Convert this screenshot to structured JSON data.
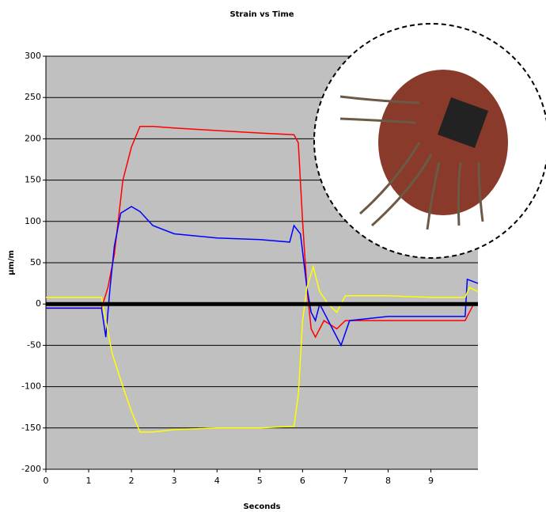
{
  "chart_data": {
    "type": "line",
    "title": "Strain vs Time",
    "x_label": "Seconds",
    "y_label": "µm/m",
    "xlim": [
      0,
      10.1
    ],
    "xticks": [
      0,
      1,
      2,
      3,
      4,
      5,
      6,
      7,
      8,
      9
    ],
    "ylim": [
      -200,
      300
    ],
    "yticks": [
      -200,
      -150,
      -100,
      -50,
      0,
      50,
      100,
      150,
      200,
      250,
      300
    ],
    "grid": true,
    "zero_line": true,
    "series": [
      {
        "color": "#ff0000",
        "x": [
          0,
          1.3,
          1.45,
          1.6,
          1.8,
          2.0,
          2.2,
          2.5,
          3,
          4,
          5,
          5.8,
          5.9,
          6.0,
          6.1,
          6.2,
          6.3,
          6.5,
          6.8,
          7,
          8,
          9,
          9.8,
          10,
          10.1
        ],
        "values": [
          -5,
          -5,
          20,
          60,
          150,
          190,
          215,
          215,
          213,
          210,
          207,
          205,
          195,
          100,
          20,
          -30,
          -40,
          -20,
          -30,
          -20,
          -20,
          -20,
          -20,
          0,
          0
        ]
      },
      {
        "color": "#0000ff",
        "x": [
          0,
          1.3,
          1.4,
          1.5,
          1.6,
          1.75,
          2.0,
          2.2,
          2.5,
          3,
          4,
          5,
          5.7,
          5.8,
          5.95,
          6.1,
          6.2,
          6.3,
          6.4,
          6.6,
          6.9,
          7.1,
          8,
          9,
          9.8,
          9.85,
          10.1
        ],
        "values": [
          -5,
          -5,
          -40,
          20,
          70,
          110,
          118,
          112,
          95,
          85,
          80,
          78,
          75,
          95,
          85,
          20,
          -10,
          -20,
          0,
          -20,
          -50,
          -20,
          -15,
          -15,
          -15,
          30,
          25
        ]
      },
      {
        "color": "#ffff00",
        "x": [
          0,
          1.3,
          1.4,
          1.55,
          1.8,
          2.0,
          2.2,
          2.5,
          3,
          4,
          5,
          5.8,
          5.9,
          6.0,
          6.1,
          6.25,
          6.4,
          6.6,
          6.8,
          7,
          8,
          9,
          9.8,
          9.9,
          10.1
        ],
        "values": [
          8,
          8,
          -20,
          -60,
          -100,
          -130,
          -155,
          -155,
          -152,
          -150,
          -150,
          -148,
          -110,
          -20,
          20,
          45,
          15,
          0,
          -10,
          10,
          10,
          8,
          8,
          20,
          15
        ]
      }
    ]
  }
}
